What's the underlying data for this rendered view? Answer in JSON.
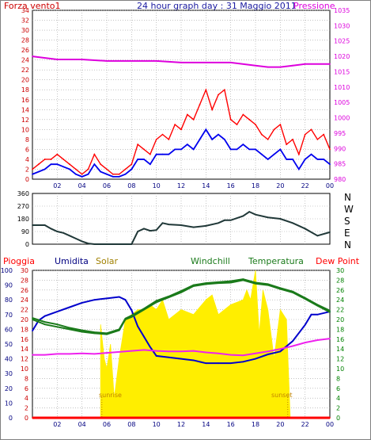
{
  "colors": {
    "wind_avg": "#0000ee",
    "wind_gust": "#ff0000",
    "pressure": "#dd00dd",
    "direction": "#203838",
    "humidity": "#0000cc",
    "solar": "#ffee00",
    "windchill": "#1a7a1a",
    "temperature": "#1a7a1a",
    "dewpoint": "#ee22ee",
    "rain": "#ff0000",
    "grid": "#a0a0a0",
    "left_axis_red": "#cc0000",
    "green_axis": "#008000",
    "navy_axis": "#000080",
    "sun_label": "#c08000",
    "title": "#1a1aa0"
  },
  "chart_data": [
    {
      "id": "wind",
      "type": "line",
      "title": "24 hour graph day : 31 Maggio 2011",
      "left_label": "Forza vento1",
      "right_label": "Pressione",
      "x_tick_labels": [
        "02",
        "04",
        "06",
        "08",
        "10",
        "12",
        "14",
        "16",
        "18",
        "20",
        "22",
        "00"
      ],
      "y_left_ticks": [
        "0",
        "2",
        "4",
        "6",
        "8",
        "10",
        "12",
        "14",
        "16",
        "18",
        "20",
        "22",
        "24",
        "26",
        "28",
        "30",
        "32",
        "34"
      ],
      "y_right_ticks": [
        "980",
        "985",
        "990",
        "995",
        "1000",
        "1005",
        "1010",
        "1015",
        "1020",
        "1025",
        "1030",
        "1035"
      ],
      "ylim_left": [
        0,
        34
      ],
      "ylim_right": [
        980,
        1035
      ],
      "xlim_hours": [
        0,
        24
      ],
      "grid": true,
      "series": [
        {
          "key": "pressure",
          "axis": "right",
          "x": [
            0,
            2,
            4,
            6,
            8,
            10,
            12,
            14,
            16,
            18,
            19,
            20,
            21,
            22,
            24
          ],
          "values": [
            1020,
            1019,
            1019,
            1018.5,
            1018.5,
            1018.5,
            1018,
            1018,
            1018,
            1017,
            1016.5,
            1016.5,
            1017,
            1017.5,
            1017.5
          ]
        },
        {
          "key": "wind_gust",
          "axis": "left",
          "x": [
            0,
            0.5,
            1,
            1.5,
            2,
            2.5,
            3,
            3.5,
            4,
            4.5,
            5,
            5.5,
            6,
            6.5,
            7,
            7.5,
            8,
            8.5,
            9,
            9.5,
            10,
            10.5,
            11,
            11.5,
            12,
            12.5,
            13,
            13.5,
            14,
            14.5,
            15,
            15.5,
            16,
            16.5,
            17,
            17.5,
            18,
            18.5,
            19,
            19.5,
            20,
            20.5,
            21,
            21.5,
            22,
            22.5,
            23,
            23.5,
            24
          ],
          "values": [
            2,
            3,
            4,
            4,
            5,
            4,
            3,
            2,
            1,
            2,
            5,
            3,
            2,
            1,
            1,
            2,
            3,
            7,
            6,
            5,
            8,
            9,
            8,
            11,
            10,
            13,
            12,
            15,
            18,
            14,
            17,
            18,
            12,
            11,
            13,
            12,
            11,
            9,
            8,
            10,
            11,
            7,
            8,
            5,
            9,
            10,
            8,
            9,
            6
          ]
        },
        {
          "key": "wind_avg",
          "axis": "left",
          "x": [
            0,
            0.5,
            1,
            1.5,
            2,
            2.5,
            3,
            3.5,
            4,
            4.5,
            5,
            5.5,
            6,
            6.5,
            7,
            7.5,
            8,
            8.5,
            9,
            9.5,
            10,
            10.5,
            11,
            11.5,
            12,
            12.5,
            13,
            13.5,
            14,
            14.5,
            15,
            15.5,
            16,
            16.5,
            17,
            17.5,
            18,
            18.5,
            19,
            19.5,
            20,
            20.5,
            21,
            21.5,
            22,
            22.5,
            23,
            23.5,
            24
          ],
          "values": [
            1,
            1.5,
            2,
            3,
            3,
            2.5,
            2,
            1,
            0.5,
            1,
            3,
            1.5,
            1,
            0.5,
            0.5,
            1,
            2,
            4,
            4,
            3,
            5,
            5,
            5,
            6,
            6,
            7,
            6,
            8,
            10,
            8,
            9,
            8,
            6,
            6,
            7,
            6,
            6,
            5,
            4,
            5,
            6,
            4,
            4,
            2,
            4,
            5,
            4,
            4,
            3
          ]
        }
      ]
    },
    {
      "id": "direction",
      "type": "line",
      "y_left_ticks": [
        "0",
        "90",
        "180",
        "270",
        "360"
      ],
      "right_labels": [
        "N",
        "W",
        "S",
        "E",
        "N"
      ],
      "ylim": [
        0,
        360
      ],
      "xlim_hours": [
        0,
        24
      ],
      "grid": true,
      "series": [
        {
          "key": "direction",
          "x": [
            0,
            1,
            1.5,
            2,
            2.5,
            3,
            3.5,
            4,
            4.5,
            5,
            5.5,
            6,
            6.5,
            7,
            7.5,
            8,
            8.5,
            9,
            9.5,
            10,
            10.5,
            11,
            12,
            13,
            14,
            15,
            15.5,
            16,
            17,
            17.5,
            18,
            19,
            20,
            21,
            22,
            23,
            24
          ],
          "values": [
            135,
            135,
            110,
            90,
            80,
            60,
            40,
            20,
            5,
            0,
            0,
            0,
            0,
            0,
            0,
            0,
            90,
            110,
            95,
            100,
            150,
            140,
            135,
            120,
            130,
            150,
            170,
            170,
            200,
            230,
            210,
            190,
            180,
            150,
            110,
            60,
            85
          ]
        }
      ]
    },
    {
      "id": "meteo",
      "type": "line",
      "labels": [
        "Pioggia",
        "Umidita",
        "Solar",
        "Windchill",
        "Temperatura",
        "Dew Point"
      ],
      "sunrise_label": "sunrise",
      "sunset_label": "sunset",
      "sunrise_hour": 5.6,
      "sunset_hour": 20.6,
      "y_left_blue_ticks": [
        "0",
        "10",
        "20",
        "30",
        "40",
        "50",
        "60",
        "70",
        "80",
        "90",
        "100"
      ],
      "y_left_red_ticks": [
        "0",
        "2",
        "4",
        "6",
        "8",
        "10",
        "12",
        "14",
        "16",
        "18",
        "20",
        "22",
        "24",
        "26",
        "28",
        "30"
      ],
      "y_right_ticks": [
        "0",
        "2",
        "4",
        "6",
        "8",
        "10",
        "12",
        "14",
        "16",
        "18",
        "20",
        "22",
        "24",
        "26",
        "28",
        "30"
      ],
      "x_tick_labels": [
        "02",
        "04",
        "06",
        "08",
        "10",
        "12",
        "14",
        "16",
        "18",
        "20",
        "22",
        "00"
      ],
      "ylim_percent": [
        0,
        100
      ],
      "ylim_temp": [
        0,
        30
      ],
      "xlim_hours": [
        0,
        24
      ],
      "grid": true,
      "series": [
        {
          "key": "solar",
          "axis": "temp",
          "kind": "area",
          "x": [
            5.5,
            5.8,
            6.0,
            6.3,
            6.6,
            7.0,
            7.5,
            8.0,
            8.5,
            9.0,
            9.5,
            10.0,
            10.5,
            11.0,
            12.0,
            13.0,
            14.0,
            14.5,
            15.0,
            16.0,
            17.0,
            17.3,
            17.6,
            18.0,
            18.3,
            18.6,
            19.0,
            19.5,
            20.0,
            20.5,
            20.8
          ],
          "values": [
            19,
            12,
            10,
            15,
            4,
            12,
            20,
            21,
            22,
            22,
            23,
            22,
            24,
            20,
            22,
            21,
            24,
            25,
            21,
            23,
            24,
            26,
            24,
            30,
            17,
            26,
            22,
            12,
            22,
            20,
            0
          ]
        },
        {
          "key": "humidity",
          "axis": "percent",
          "x": [
            0,
            0.5,
            1,
            2,
            3,
            4,
            5,
            6,
            7,
            7.5,
            8,
            8.5,
            9,
            9.5,
            10,
            11,
            12,
            13,
            14,
            15,
            16,
            17,
            18,
            19,
            20,
            21,
            22,
            22.5,
            23,
            24
          ],
          "values": [
            59,
            66,
            69,
            72,
            75,
            78,
            80,
            81,
            82,
            80,
            73,
            62,
            55,
            48,
            42,
            41,
            40,
            39,
            37,
            37,
            37,
            38,
            40,
            43,
            45,
            52,
            63,
            70,
            70,
            72
          ]
        },
        {
          "key": "windchill",
          "axis": "temp",
          "x": [
            0,
            1,
            2,
            3,
            4,
            5,
            6,
            7,
            7.5,
            8,
            9,
            10,
            11,
            12,
            13,
            14,
            15,
            16,
            17,
            18,
            19,
            20,
            21,
            22,
            23,
            24
          ],
          "values": [
            20,
            19,
            18.5,
            18,
            17.5,
            17.2,
            17,
            17.8,
            20,
            20.5,
            22,
            23.5,
            24.5,
            25.5,
            26.8,
            27.2,
            27.4,
            27.5,
            28,
            27.3,
            27,
            26.2,
            25.5,
            24.2,
            22.8,
            21.5
          ]
        },
        {
          "key": "temperature",
          "axis": "temp",
          "x": [
            0,
            1,
            2,
            3,
            4,
            5,
            6,
            7,
            7.5,
            8,
            9,
            10,
            11,
            12,
            13,
            14,
            15,
            16,
            17,
            18,
            19,
            20,
            21,
            22,
            23,
            24
          ],
          "values": [
            20.3,
            19.5,
            19,
            18.3,
            17.8,
            17.4,
            17.2,
            18,
            20.2,
            20.8,
            22.2,
            23.8,
            24.7,
            25.8,
            27,
            27.4,
            27.6,
            27.8,
            28.2,
            27.5,
            27.2,
            26.4,
            25.7,
            24.4,
            23,
            21.8
          ]
        },
        {
          "key": "dewpoint",
          "axis": "temp",
          "x": [
            0,
            1,
            2,
            3,
            4,
            5,
            6,
            7,
            8,
            9,
            10,
            11,
            12,
            13,
            14,
            15,
            16,
            17,
            18,
            19,
            20,
            21,
            22,
            23,
            24
          ],
          "values": [
            12.8,
            12.8,
            13,
            13,
            13.1,
            13,
            13.2,
            13.4,
            13.6,
            13.8,
            13.6,
            13.5,
            13.5,
            13.6,
            13.3,
            13.1,
            12.8,
            12.7,
            13.1,
            13.5,
            14,
            14.6,
            15.3,
            15.8,
            16.1
          ]
        },
        {
          "key": "rain",
          "axis": "temp",
          "x": [
            0,
            24
          ],
          "values": [
            0,
            0
          ]
        }
      ]
    }
  ]
}
